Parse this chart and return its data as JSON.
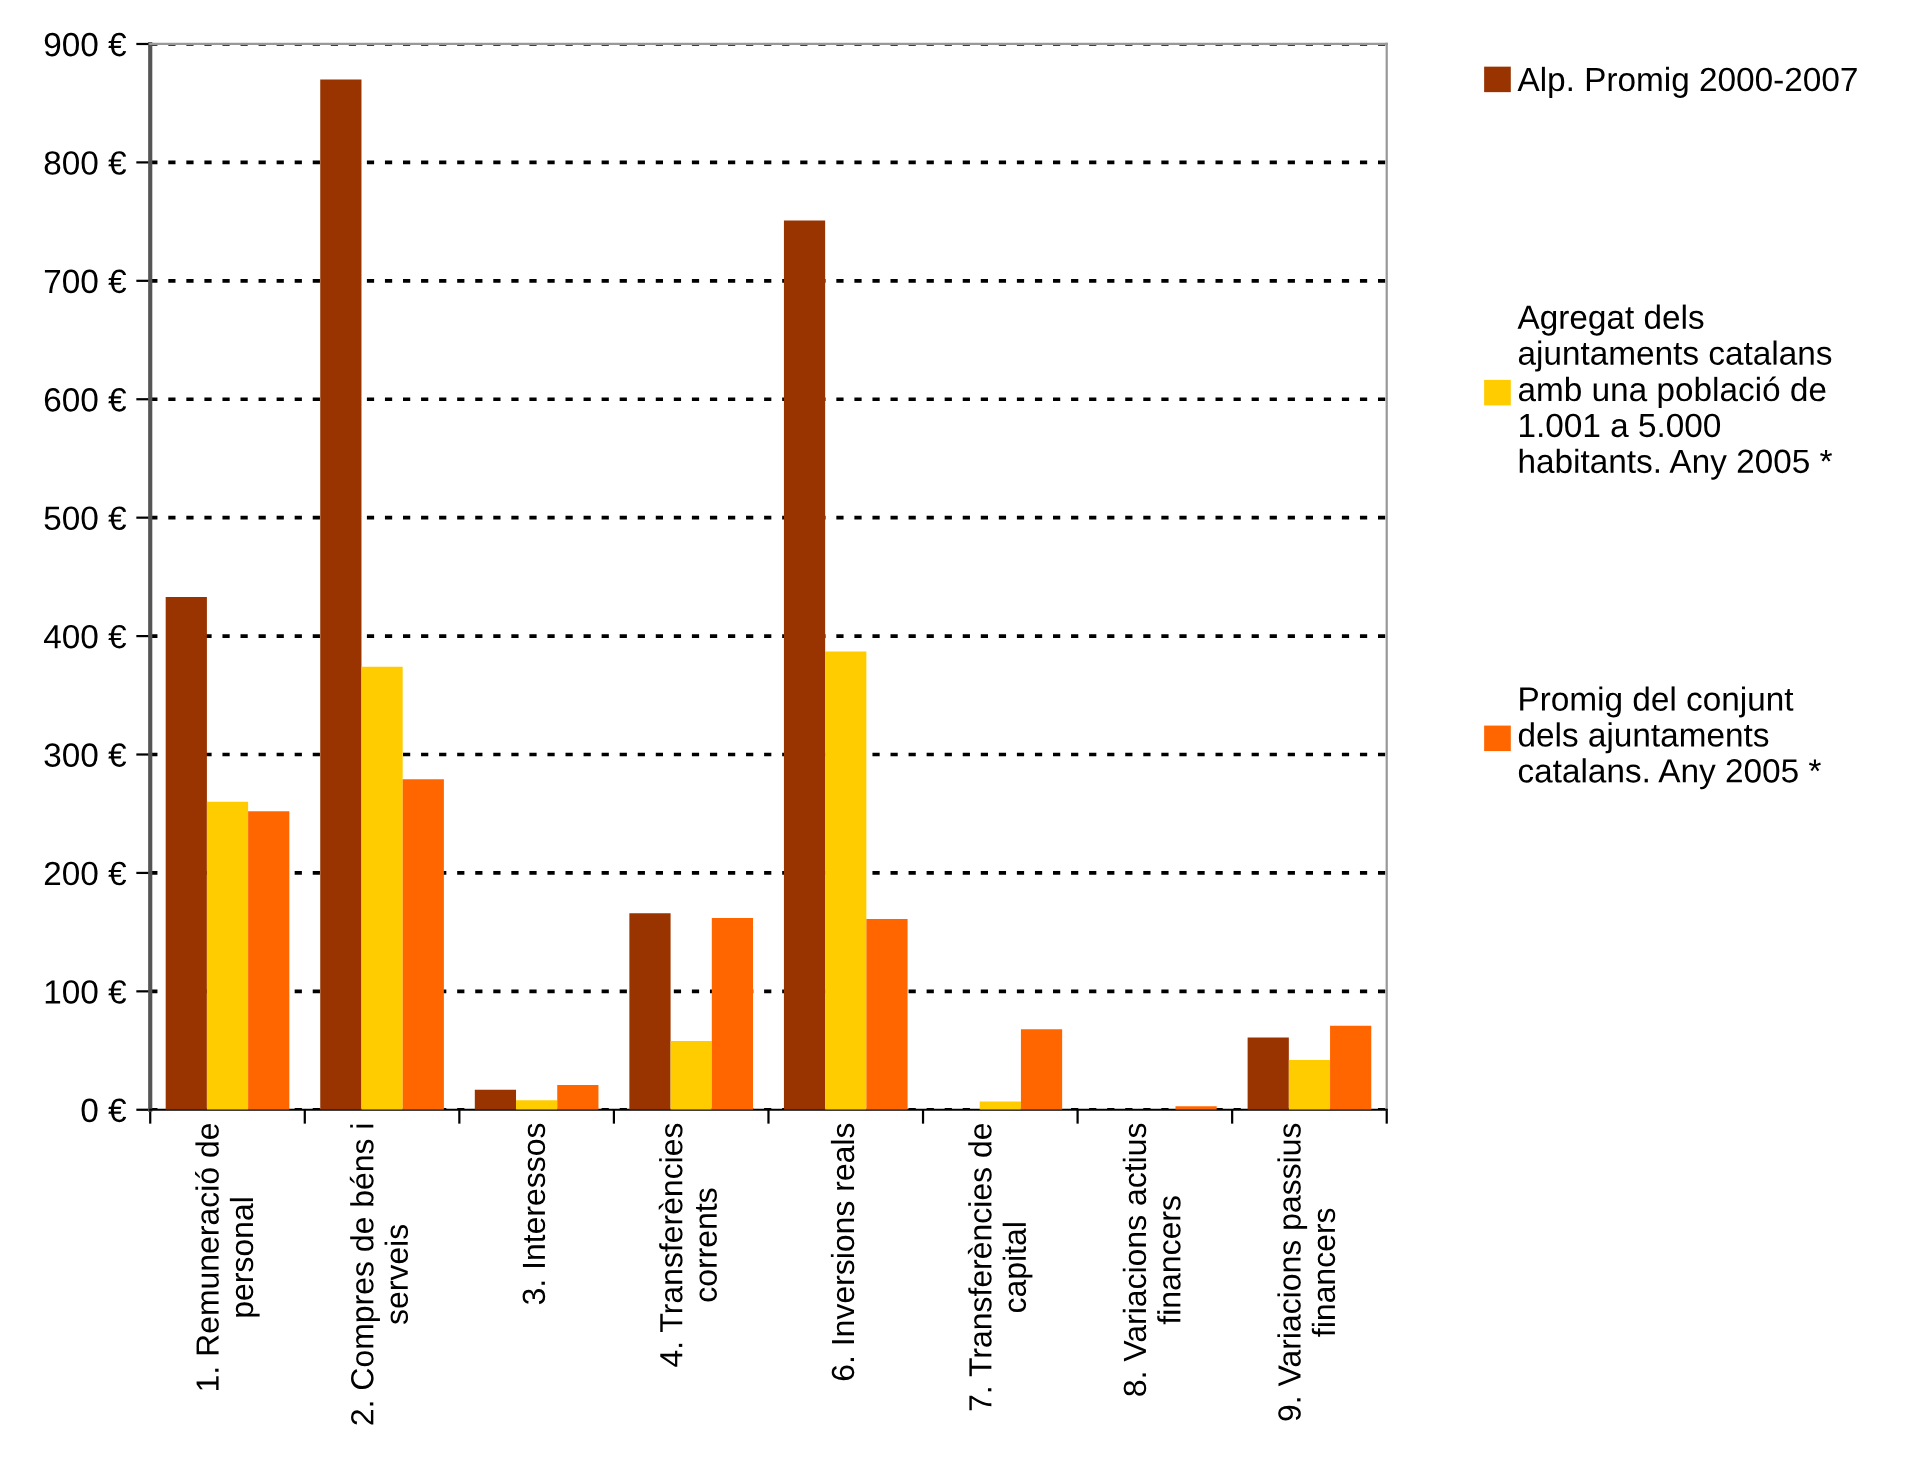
{
  "chart_data": {
    "type": "bar",
    "categories": [
      "1. Remuneració de personal",
      "2. Compres de béns i serveis",
      "3. Interessos",
      "4. Transferències corrents",
      "6. Inversions reals",
      "7. Transferències de capital",
      "8. Variacions actius financers",
      "9. Variacions passius financers"
    ],
    "series": [
      {
        "name": "Alp. Promig 2000-2007",
        "color": "#993300",
        "values": [
          433,
          870,
          17,
          166,
          751,
          0,
          0,
          61
        ]
      },
      {
        "name": "Agregat dels ajuntaments catalans amb una població de 1.001 a 5.000 habitants. Any 2005 *",
        "color": "#ffcc00",
        "values": [
          260,
          374,
          8,
          58,
          387,
          7,
          0,
          42
        ]
      },
      {
        "name": "Promig del conjunt dels ajuntaments catalans. Any 2005 *",
        "color": "#ff6600",
        "values": [
          252,
          279,
          21,
          162,
          161,
          68,
          3,
          71
        ]
      }
    ],
    "ylim": [
      0,
      900
    ],
    "yticks": [
      {
        "value": 0,
        "label": "0 €"
      },
      {
        "value": 100,
        "label": "100 €"
      },
      {
        "value": 200,
        "label": "200 €"
      },
      {
        "value": 300,
        "label": "300 €"
      },
      {
        "value": 400,
        "label": "400 €"
      },
      {
        "value": 500,
        "label": "500 €"
      },
      {
        "value": 600,
        "label": "600 €"
      },
      {
        "value": 700,
        "label": "700 €"
      },
      {
        "value": 800,
        "label": "800 €"
      },
      {
        "value": 900,
        "label": "900 €"
      }
    ],
    "grid": "y",
    "legend": "right"
  }
}
